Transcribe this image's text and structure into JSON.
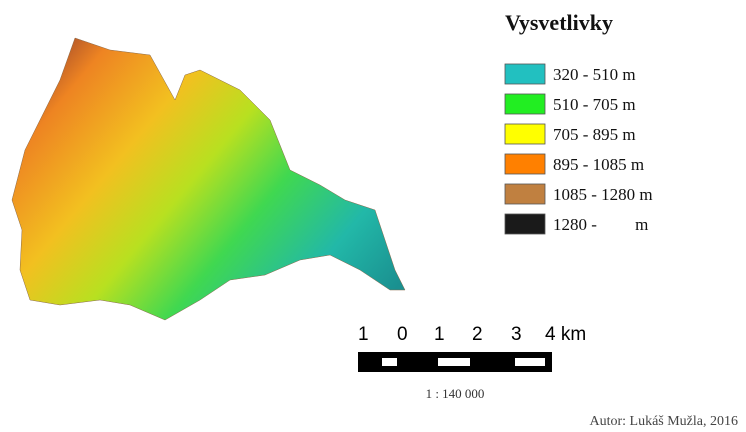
{
  "legend": {
    "title": "Vysvetlivky",
    "items": [
      {
        "label": "320 - 510 m",
        "color": "#22c0c0"
      },
      {
        "label": "510 - 705 m",
        "color": "#22ee22"
      },
      {
        "label": "705 - 895 m",
        "color": "#ffff00"
      },
      {
        "label": "895 - 1085 m",
        "color": "#ff8000"
      },
      {
        "label": "1085 - 1280 m",
        "color": "#c08040"
      },
      {
        "label": "1280 -         m",
        "color": "#1a1a1a"
      }
    ]
  },
  "scale_bar": {
    "labels": [
      "1",
      "0",
      "1",
      "2",
      "3",
      "4 km"
    ],
    "ratio": "1 : 140 000"
  },
  "author": "Autor: Lukáš Mužla, 2016"
}
